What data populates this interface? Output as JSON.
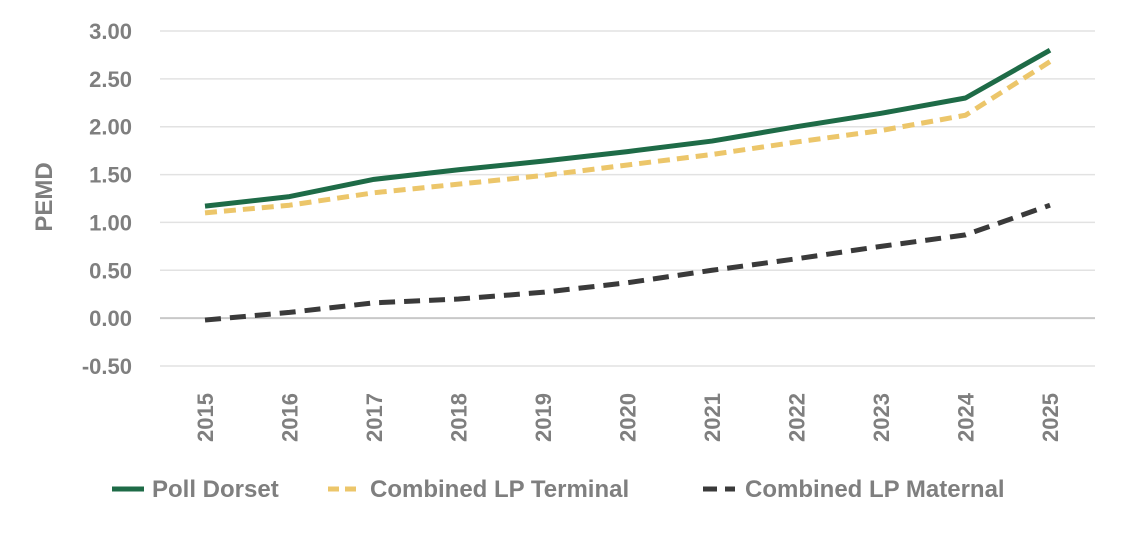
{
  "chart_data": {
    "type": "line",
    "title": "",
    "xlabel": "",
    "ylabel": "PEMD",
    "ylim": [
      -0.5,
      3.0
    ],
    "yticks": [
      "-0.50",
      "0.00",
      "0.50",
      "1.00",
      "1.50",
      "2.00",
      "2.50",
      "3.00"
    ],
    "ytick_values": [
      -0.5,
      0,
      0.5,
      1.0,
      1.5,
      2.0,
      2.5,
      3.0
    ],
    "categories": [
      "2015",
      "2016",
      "2017",
      "2018",
      "2019",
      "2020",
      "2021",
      "2022",
      "2023",
      "2024",
      "2025"
    ],
    "grid": true,
    "legend_position": "bottom",
    "series": [
      {
        "name": "Poll Dorset",
        "values": [
          1.17,
          1.27,
          1.45,
          1.55,
          1.64,
          1.74,
          1.85,
          2.0,
          2.14,
          2.3,
          2.8
        ],
        "color": "#1e6b47",
        "style": "solid"
      },
      {
        "name": "Combined LP Terminal",
        "values": [
          1.1,
          1.18,
          1.31,
          1.4,
          1.49,
          1.6,
          1.71,
          1.84,
          1.96,
          2.12,
          2.68
        ],
        "color": "#ecc66a",
        "style": "dashed"
      },
      {
        "name": "Combined LP Maternal",
        "values": [
          -0.02,
          0.06,
          0.16,
          0.2,
          0.27,
          0.37,
          0.5,
          0.62,
          0.75,
          0.87,
          1.18
        ],
        "color": "#3a3a3a",
        "style": "dashed"
      }
    ]
  }
}
